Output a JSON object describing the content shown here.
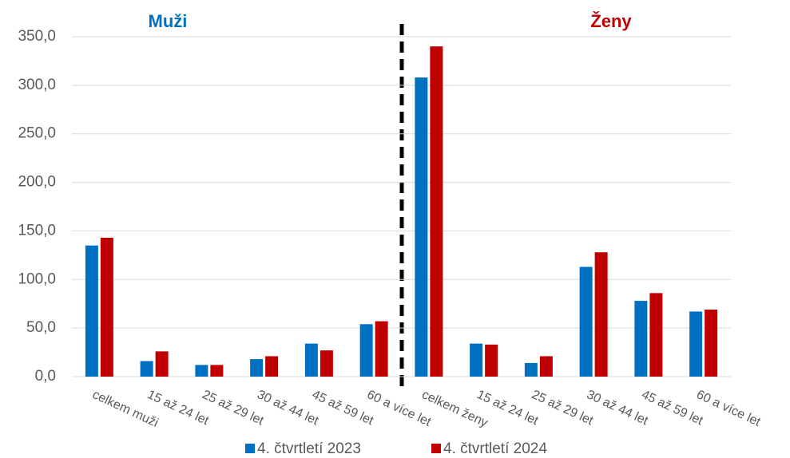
{
  "chart_data": {
    "type": "bar",
    "categories": [
      "celkem muži",
      "15 až 24 let",
      "25 až 29 let",
      "30 až 44 let",
      "45 až 59 let",
      "60 a více let",
      "celkem ženy",
      "15 až 24 let",
      "25 až 29 let",
      "30 až 44 let",
      "45 až 59 let",
      "60 a více let"
    ],
    "series": [
      {
        "name": "4. čtvrtletí 2023",
        "color": "#0070c0",
        "values": [
          135,
          16,
          12,
          18,
          34,
          54,
          308,
          34,
          14,
          113,
          78,
          67
        ]
      },
      {
        "name": "4. čtvrtletí 2024",
        "color": "#c00000",
        "values": [
          143,
          26,
          12,
          21,
          27,
          57,
          340,
          33,
          21,
          128,
          86,
          69
        ]
      }
    ],
    "annotations": [
      {
        "text": "Muži",
        "color": "#0070c0"
      },
      {
        "text": "Ženy",
        "color": "#c00000"
      }
    ],
    "ylim": [
      0,
      350
    ],
    "yticks": [
      {
        "value": 0,
        "label": "0,0"
      },
      {
        "value": 50,
        "label": "50,0"
      },
      {
        "value": 100,
        "label": "100,0"
      },
      {
        "value": 150,
        "label": "150,0"
      },
      {
        "value": 200,
        "label": "200,0"
      },
      {
        "value": 250,
        "label": "250,0"
      },
      {
        "value": 300,
        "label": "300,0"
      },
      {
        "value": 350,
        "label": "350,0"
      }
    ],
    "grid": true,
    "legend": "bottom"
  }
}
